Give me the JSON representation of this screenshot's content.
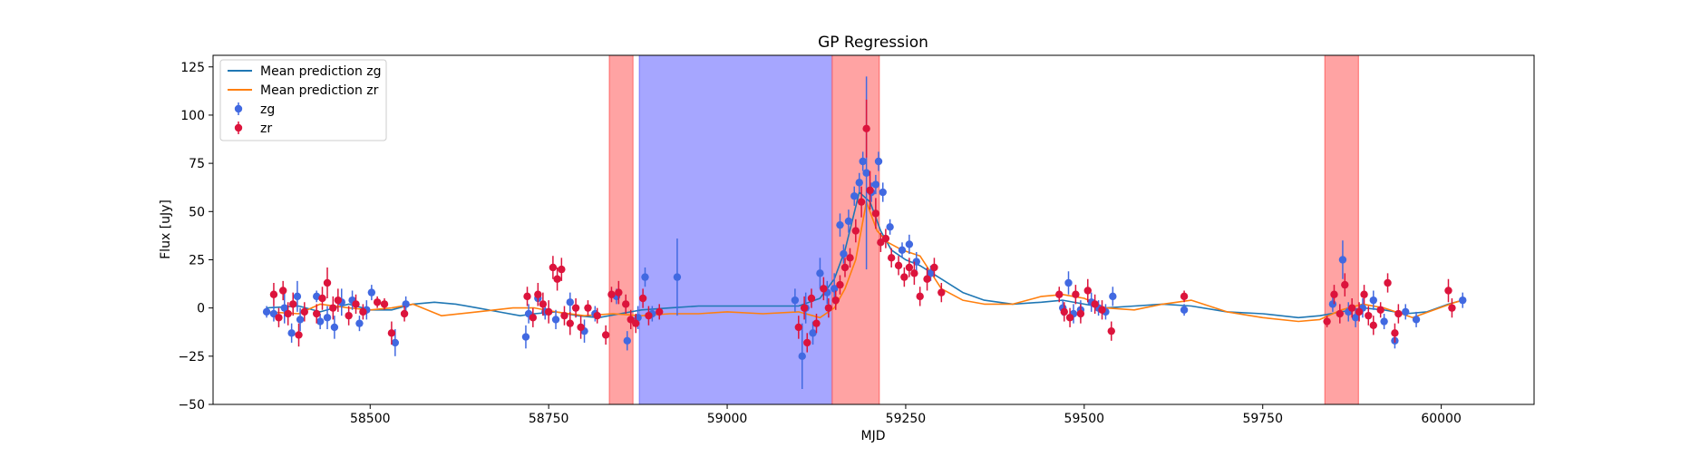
{
  "chart_data": {
    "type": "scatter",
    "title": "GP Regression",
    "xlabel": "MJD",
    "ylabel": "Flux [uJy]",
    "xlim": [
      58280,
      60130
    ],
    "ylim": [
      -50,
      131
    ],
    "xticks": [
      58500,
      58750,
      59000,
      59250,
      59500,
      59750,
      60000
    ],
    "yticks": [
      -50,
      -25,
      0,
      25,
      50,
      75,
      100,
      125
    ],
    "grid": false,
    "legend_position": "top-left",
    "colors": {
      "zg_line": "#1f77b4",
      "zr_line": "#ff7f0e",
      "zg_points": "#4169e1",
      "zr_points": "#dc143c",
      "red_band": "#ff6666",
      "blue_band": "#7777ff",
      "overlap_band": "#c0609a"
    },
    "shaded_regions": [
      {
        "color": "red",
        "x": [
          58835,
          58868
        ]
      },
      {
        "color": "blue",
        "x": [
          58877,
          59147
        ]
      },
      {
        "color": "red",
        "x": [
          59147,
          59213
        ]
      },
      {
        "color": "red",
        "x": [
          59837,
          59884
        ]
      }
    ],
    "lines": [
      {
        "name": "Mean prediction zg",
        "x": [
          58355,
          58400,
          58430,
          58470,
          58500,
          58530,
          58560,
          58590,
          58620,
          58650,
          58680,
          58710,
          58730,
          58760,
          58790,
          58820,
          58850,
          58880,
          58920,
          58960,
          59000,
          59050,
          59100,
          59130,
          59150,
          59165,
          59175,
          59185,
          59200,
          59215,
          59230,
          59250,
          59270,
          59300,
          59330,
          59360,
          59400,
          59440,
          59470,
          59500,
          59530,
          59570,
          59610,
          59650,
          59700,
          59750,
          59800,
          59830,
          59860,
          59890,
          59920,
          59950,
          59980,
          60010,
          60030
        ],
        "y": [
          0,
          1,
          -2,
          2,
          -1,
          -1,
          2,
          3,
          2,
          0,
          -2,
          -4,
          -3,
          -2,
          -4,
          -5,
          -3,
          -1,
          0,
          1,
          1,
          1,
          1,
          5,
          15,
          30,
          45,
          60,
          55,
          40,
          30,
          25,
          22,
          15,
          8,
          4,
          2,
          3,
          4,
          2,
          0,
          1,
          2,
          1,
          -2,
          -3,
          -5,
          -4,
          -2,
          0,
          -1,
          -3,
          -2,
          2,
          4
        ]
      },
      {
        "name": "Mean prediction zr",
        "x": [
          58355,
          58400,
          58430,
          58470,
          58500,
          58530,
          58560,
          58600,
          58650,
          58700,
          58730,
          58760,
          58800,
          58840,
          58880,
          58920,
          58960,
          59000,
          59050,
          59100,
          59130,
          59150,
          59165,
          59180,
          59195,
          59210,
          59225,
          59245,
          59270,
          59300,
          59330,
          59360,
          59400,
          59440,
          59470,
          59500,
          59530,
          59570,
          59610,
          59650,
          59700,
          59750,
          59800,
          59830,
          59860,
          59890,
          59920,
          59960,
          59990,
          60020,
          60030
        ],
        "y": [
          -2,
          -3,
          2,
          0,
          -1,
          0,
          2,
          -4,
          -2,
          0,
          0,
          -2,
          -4,
          -3,
          -4,
          -3,
          -3,
          -2,
          -3,
          -2,
          -5,
          0,
          10,
          25,
          55,
          40,
          34,
          30,
          27,
          10,
          4,
          2,
          2,
          6,
          7,
          5,
          0,
          -1,
          2,
          4,
          -2,
          -5,
          -7,
          -6,
          -1,
          2,
          0,
          -5,
          -1,
          3,
          4
        ]
      }
    ],
    "series": [
      {
        "name": "zg",
        "points": [
          [
            58355,
            -2,
            3
          ],
          [
            58365,
            -3,
            4
          ],
          [
            58380,
            0,
            8
          ],
          [
            58390,
            -13,
            5
          ],
          [
            58398,
            6,
            8
          ],
          [
            58402,
            -6,
            6
          ],
          [
            58425,
            6,
            3
          ],
          [
            58430,
            -7,
            4
          ],
          [
            58440,
            -5,
            6
          ],
          [
            58450,
            -10,
            6
          ],
          [
            58460,
            3,
            7
          ],
          [
            58475,
            4,
            5
          ],
          [
            58485,
            -8,
            4
          ],
          [
            58495,
            -1,
            5
          ],
          [
            58502,
            8,
            4
          ],
          [
            58535,
            -18,
            7
          ],
          [
            58550,
            2,
            4
          ],
          [
            58718,
            -15,
            6
          ],
          [
            58722,
            -3,
            5
          ],
          [
            58735,
            5,
            4
          ],
          [
            58745,
            -2,
            4
          ],
          [
            58760,
            -6,
            5
          ],
          [
            58780,
            3,
            5
          ],
          [
            58800,
            -12,
            6
          ],
          [
            58815,
            -3,
            4
          ],
          [
            58845,
            6,
            4
          ],
          [
            58860,
            -17,
            5
          ],
          [
            58875,
            -5,
            6
          ],
          [
            58885,
            16,
            5
          ],
          [
            58895,
            -3,
            4
          ],
          [
            58930,
            16,
            20
          ],
          [
            59095,
            4,
            6
          ],
          [
            59105,
            -25,
            17
          ],
          [
            59110,
            0,
            8
          ],
          [
            59120,
            -13,
            6
          ],
          [
            59130,
            18,
            8
          ],
          [
            59140,
            8,
            6
          ],
          [
            59150,
            10,
            8
          ],
          [
            59158,
            43,
            6
          ],
          [
            59163,
            28,
            5
          ],
          [
            59170,
            45,
            6
          ],
          [
            59178,
            58,
            5
          ],
          [
            59185,
            65,
            5
          ],
          [
            59190,
            76,
            5
          ],
          [
            59195,
            70,
            50
          ],
          [
            59202,
            60,
            5
          ],
          [
            59208,
            64,
            5
          ],
          [
            59212,
            76,
            5
          ],
          [
            59218,
            60,
            5
          ],
          [
            59228,
            42,
            4
          ],
          [
            59245,
            30,
            4
          ],
          [
            59255,
            33,
            5
          ],
          [
            59265,
            24,
            5
          ],
          [
            59285,
            18,
            4
          ],
          [
            59470,
            0,
            4
          ],
          [
            59478,
            13,
            6
          ],
          [
            59485,
            -3,
            5
          ],
          [
            59495,
            -1,
            5
          ],
          [
            59510,
            3,
            5
          ],
          [
            59520,
            0,
            4
          ],
          [
            59530,
            -2,
            4
          ],
          [
            59540,
            6,
            5
          ],
          [
            59640,
            -1,
            3
          ],
          [
            59848,
            2,
            4
          ],
          [
            59862,
            25,
            10
          ],
          [
            59870,
            -2,
            5
          ],
          [
            59880,
            -5,
            5
          ],
          [
            59890,
            0,
            5
          ],
          [
            59905,
            4,
            5
          ],
          [
            59920,
            -7,
            4
          ],
          [
            59935,
            -17,
            4
          ],
          [
            59950,
            -2,
            4
          ],
          [
            59965,
            -6,
            4
          ],
          [
            60030,
            4,
            4
          ]
        ]
      },
      {
        "name": "zr",
        "points": [
          [
            58365,
            7,
            6
          ],
          [
            58372,
            -5,
            5
          ],
          [
            58378,
            9,
            5
          ],
          [
            58385,
            -3,
            6
          ],
          [
            58392,
            2,
            6
          ],
          [
            58400,
            -14,
            6
          ],
          [
            58408,
            -2,
            5
          ],
          [
            58425,
            -3,
            5
          ],
          [
            58433,
            5,
            6
          ],
          [
            58440,
            13,
            8
          ],
          [
            58448,
            0,
            6
          ],
          [
            58455,
            4,
            6
          ],
          [
            58470,
            -4,
            5
          ],
          [
            58480,
            2,
            5
          ],
          [
            58490,
            -2,
            4
          ],
          [
            58510,
            3,
            3
          ],
          [
            58520,
            2,
            3
          ],
          [
            58530,
            -13,
            6
          ],
          [
            58548,
            -3,
            4
          ],
          [
            58720,
            6,
            5
          ],
          [
            58728,
            -5,
            5
          ],
          [
            58735,
            7,
            6
          ],
          [
            58742,
            2,
            6
          ],
          [
            58750,
            -2,
            6
          ],
          [
            58756,
            21,
            6
          ],
          [
            58762,
            15,
            6
          ],
          [
            58768,
            20,
            6
          ],
          [
            58772,
            -4,
            5
          ],
          [
            58780,
            -8,
            6
          ],
          [
            58788,
            0,
            5
          ],
          [
            58795,
            -10,
            6
          ],
          [
            58805,
            0,
            4
          ],
          [
            58818,
            -4,
            4
          ],
          [
            58830,
            -14,
            5
          ],
          [
            58838,
            7,
            4
          ],
          [
            58848,
            8,
            6
          ],
          [
            58858,
            2,
            5
          ],
          [
            58865,
            -6,
            5
          ],
          [
            58872,
            -8,
            5
          ],
          [
            58882,
            5,
            5
          ],
          [
            58890,
            -4,
            5
          ],
          [
            58905,
            -2,
            4
          ],
          [
            59100,
            -10,
            6
          ],
          [
            59108,
            0,
            6
          ],
          [
            59112,
            -18,
            5
          ],
          [
            59118,
            5,
            5
          ],
          [
            59125,
            -8,
            5
          ],
          [
            59135,
            10,
            6
          ],
          [
            59142,
            0,
            5
          ],
          [
            59152,
            4,
            5
          ],
          [
            59158,
            12,
            5
          ],
          [
            59165,
            21,
            5
          ],
          [
            59172,
            26,
            5
          ],
          [
            59180,
            40,
            6
          ],
          [
            59188,
            55,
            8
          ],
          [
            59195,
            93,
            15
          ],
          [
            59200,
            61,
            10
          ],
          [
            59208,
            49,
            8
          ],
          [
            59215,
            34,
            5
          ],
          [
            59222,
            36,
            5
          ],
          [
            59230,
            26,
            5
          ],
          [
            59240,
            22,
            5
          ],
          [
            59248,
            16,
            5
          ],
          [
            59255,
            21,
            5
          ],
          [
            59262,
            18,
            6
          ],
          [
            59270,
            6,
            5
          ],
          [
            59280,
            15,
            6
          ],
          [
            59290,
            21,
            5
          ],
          [
            59300,
            8,
            5
          ],
          [
            59465,
            7,
            4
          ],
          [
            59472,
            -2,
            5
          ],
          [
            59480,
            -5,
            5
          ],
          [
            59488,
            7,
            5
          ],
          [
            59495,
            -3,
            5
          ],
          [
            59505,
            9,
            6
          ],
          [
            59515,
            2,
            5
          ],
          [
            59525,
            -1,
            5
          ],
          [
            59538,
            -12,
            5
          ],
          [
            59640,
            6,
            3
          ],
          [
            59840,
            -7,
            3
          ],
          [
            59850,
            7,
            5
          ],
          [
            59858,
            -3,
            5
          ],
          [
            59865,
            12,
            6
          ],
          [
            59875,
            0,
            5
          ],
          [
            59885,
            -2,
            5
          ],
          [
            59892,
            7,
            5
          ],
          [
            59898,
            -4,
            5
          ],
          [
            59905,
            -9,
            5
          ],
          [
            59915,
            -1,
            4
          ],
          [
            59925,
            13,
            5
          ],
          [
            59935,
            -13,
            5
          ],
          [
            59940,
            -3,
            5
          ],
          [
            60010,
            9,
            6
          ],
          [
            60015,
            0,
            5
          ]
        ]
      }
    ],
    "legend": [
      {
        "label": "Mean prediction zg",
        "kind": "line",
        "color": "#1f77b4"
      },
      {
        "label": "Mean prediction zr",
        "kind": "line",
        "color": "#ff7f0e"
      },
      {
        "label": "zg",
        "kind": "errorbar-point",
        "color": "#4169e1"
      },
      {
        "label": "zr",
        "kind": "errorbar-point",
        "color": "#dc143c"
      }
    ]
  }
}
